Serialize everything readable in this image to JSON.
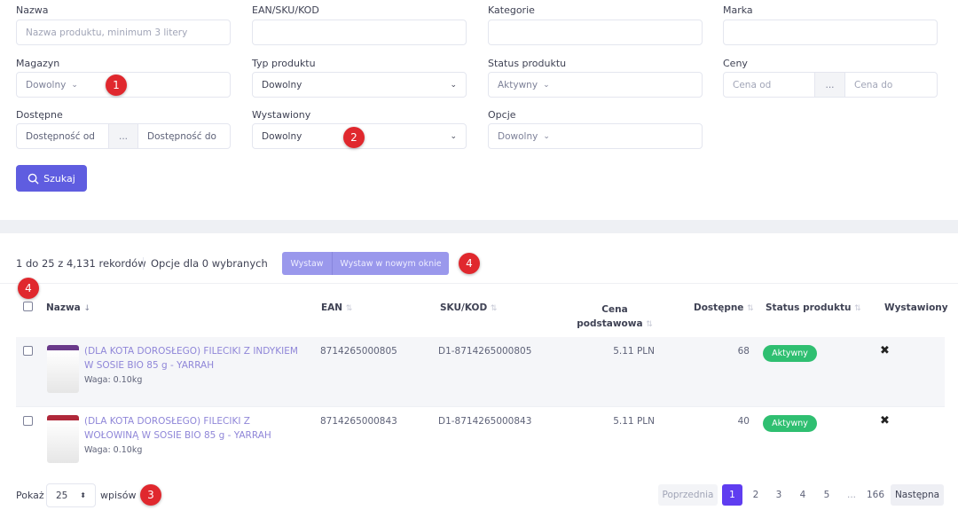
{
  "filters": {
    "nazwa": {
      "label": "Nazwa",
      "placeholder": "Nazwa produktu, minimum 3 litery"
    },
    "ean": {
      "label": "EAN/SKU/KOD",
      "value": ""
    },
    "kategorie": {
      "label": "Kategorie",
      "value": ""
    },
    "marka": {
      "label": "Marka",
      "value": ""
    },
    "magazyn": {
      "label": "Magazyn",
      "value": "Dowolny"
    },
    "typ": {
      "label": "Typ produktu",
      "value": "Dowolny"
    },
    "status": {
      "label": "Status produktu",
      "value": "Aktywny"
    },
    "ceny": {
      "label": "Ceny",
      "from": "Cena od",
      "to": "Cena do",
      "sep": "..."
    },
    "dostepne": {
      "label": "Dostępne",
      "from": "Dostępność od",
      "to": "Dostępność do",
      "sep": "..."
    },
    "wystawiony": {
      "label": "Wystawiony",
      "value": "Dowolny"
    },
    "opcje": {
      "label": "Opcje",
      "value": "Dowolny"
    },
    "search_label": "Szukaj"
  },
  "badges": [
    "1",
    "2",
    "3",
    "4",
    "4"
  ],
  "toolbar": {
    "records": "1 do 25 z 4,131 rekordów",
    "selected": "Opcje dla 0 wybranych",
    "wystaw": "Wystaw",
    "wystaw_new": "Wystaw w nowym oknie"
  },
  "table": {
    "headers": {
      "nazwa": "Nazwa",
      "ean": "EAN",
      "sku": "SKU/KOD",
      "cena1": "Cena",
      "cena2": "podstawowa",
      "dostepne": "Dostępne",
      "status": "Status produktu",
      "wystawiony": "Wystawiony"
    },
    "rows": [
      {
        "name": "(DLA KOTA DOROSŁEGO) FILECIKI Z INDYKIEM W SOSIE BIO 85 g - YARRAH",
        "weight": "Waga: 0.10kg",
        "ean": "8714265000805",
        "sku": "D1-8714265000805",
        "price": "5.11 PLN",
        "available": "68",
        "status": "Aktywny",
        "listed": "✖"
      },
      {
        "name": "(DLA KOTA DOROSŁEGO) FILECIKI Z WOŁOWINĄ W SOSIE BIO 85 g - YARRAH",
        "weight": "Waga: 0.10kg",
        "ean": "8714265000843",
        "sku": "D1-8714265000843",
        "price": "5.11 PLN",
        "available": "40",
        "status": "Aktywny",
        "listed": "✖"
      }
    ]
  },
  "footer": {
    "show": "Pokaż",
    "per_page": "25",
    "entries": "wpisów",
    "pagination": {
      "prev": "Poprzednia",
      "pages": [
        "1",
        "2",
        "3",
        "4",
        "5",
        "...",
        "166"
      ],
      "next": "Następna",
      "current": "1"
    }
  },
  "colors": {
    "accent": "#5f5de0",
    "accent_light": "#9a98ec",
    "success": "#2fbf71",
    "badge": "#e0282e"
  }
}
